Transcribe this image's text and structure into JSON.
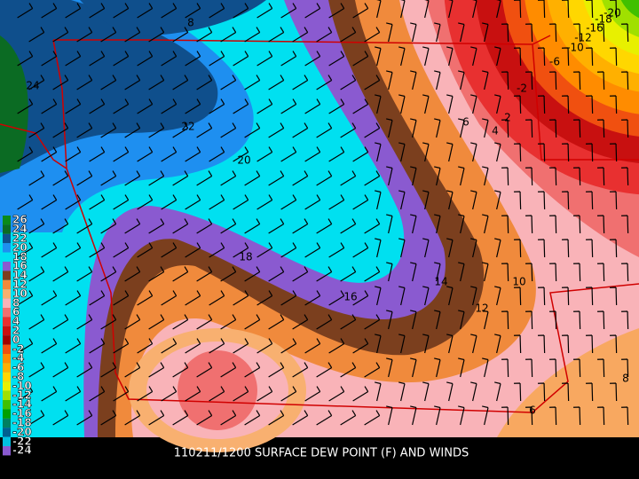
{
  "caption": "110211/1200 SURFACE DEW POINT (F) AND WINDS",
  "legend": [
    {
      "label": "26",
      "color": "#0a8a1a"
    },
    {
      "label": "24",
      "color": "#0b6b23"
    },
    {
      "label": "22",
      "color": "#0f4f8c"
    },
    {
      "label": "20",
      "color": "#1e8ff0"
    },
    {
      "label": "18",
      "color": "#00e0f0"
    },
    {
      "label": "16",
      "color": "#8a5ad0"
    },
    {
      "label": "14",
      "color": "#7b3f1e"
    },
    {
      "label": "12",
      "color": "#f08a3c"
    },
    {
      "label": "10",
      "color": "#f8b070"
    },
    {
      "label": "8",
      "color": "#f9b3b8"
    },
    {
      "label": "6",
      "color": "#f07070"
    },
    {
      "label": "4",
      "color": "#e83030"
    },
    {
      "label": "2",
      "color": "#c81010"
    },
    {
      "label": "0",
      "color": "#a00000"
    },
    {
      "label": "-2",
      "color": "#f05010"
    },
    {
      "label": "-4",
      "color": "#ff8c00"
    },
    {
      "label": "-6",
      "color": "#ffb000"
    },
    {
      "label": "-8",
      "color": "#ffd700"
    },
    {
      "label": "-10",
      "color": "#e8f000"
    },
    {
      "label": "-12",
      "color": "#a0e000"
    },
    {
      "label": "-14",
      "color": "#40c000"
    },
    {
      "label": "-16",
      "color": "#00a000"
    },
    {
      "label": "-18",
      "color": "#008060"
    },
    {
      "label": "-20",
      "color": "#006090"
    },
    {
      "label": "-22",
      "color": "#00c0e0"
    },
    {
      "label": "-24",
      "color": "#8a5ad0"
    }
  ],
  "contour_labels": [
    "24",
    "22",
    "20",
    "18",
    "16",
    "14",
    "12",
    "10",
    "8",
    "6",
    "4",
    "2",
    "-2",
    "-6",
    "-10",
    "-12",
    "-16",
    "-18",
    "-20",
    "6",
    "8"
  ]
}
